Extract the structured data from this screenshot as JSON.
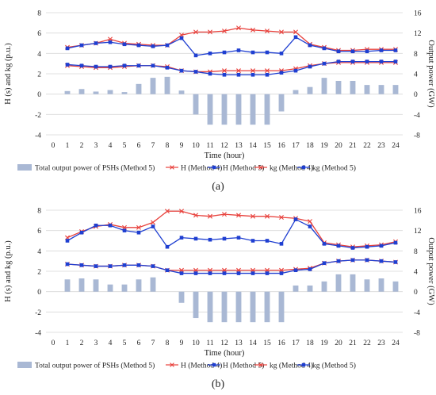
{
  "chart_data": [
    {
      "type": "bar+line",
      "panel_label": "(a)",
      "xlabel": "Time (hour)",
      "ylabel": "H (s) and kg (p.u.)",
      "y2label": "Output power (GW)",
      "categories": [
        0,
        1,
        2,
        3,
        4,
        5,
        6,
        7,
        8,
        9,
        10,
        11,
        12,
        13,
        14,
        15,
        16,
        17,
        18,
        19,
        20,
        21,
        22,
        23,
        24
      ],
      "ylim": [
        -4,
        8
      ],
      "yticks": [
        -4,
        -2,
        0,
        2,
        4,
        6,
        8
      ],
      "y2lim": [
        -8,
        16
      ],
      "y2ticks": [
        -8,
        -4,
        0,
        4,
        8,
        12,
        16
      ],
      "grid": true,
      "legend_position": "bottom",
      "series": [
        {
          "name": "Total output power of PSHs (Method 5)",
          "kind": "bar",
          "axis": "y2",
          "color": "#a9b8d4",
          "x": [
            1,
            2,
            3,
            4,
            5,
            6,
            7,
            8,
            9,
            10,
            11,
            12,
            13,
            14,
            15,
            16,
            17,
            18,
            19,
            20,
            21,
            22,
            23,
            24
          ],
          "values": [
            0.6,
            1.0,
            0.5,
            0.8,
            0.4,
            2.0,
            3.2,
            3.4,
            0.7,
            -4.0,
            -6.0,
            -6.0,
            -6.0,
            -6.0,
            -6.0,
            -3.4,
            0.8,
            1.4,
            3.2,
            2.6,
            2.6,
            1.8,
            1.8,
            1.8
          ]
        },
        {
          "name": "H (Method 4)",
          "kind": "line",
          "marker": "x",
          "axis": "y",
          "color": "#e8413c",
          "x": [
            1,
            2,
            3,
            4,
            5,
            6,
            7,
            8,
            9,
            10,
            11,
            12,
            13,
            14,
            15,
            16,
            17,
            18,
            19,
            20,
            21,
            22,
            23,
            24
          ],
          "values": [
            2.8,
            2.7,
            2.6,
            2.6,
            2.7,
            2.8,
            2.8,
            2.7,
            2.3,
            2.2,
            2.2,
            2.3,
            2.3,
            2.3,
            2.3,
            2.3,
            2.5,
            2.8,
            3.0,
            3.1,
            3.1,
            3.1,
            3.1,
            3.1
          ]
        },
        {
          "name": "H (Method 5)",
          "kind": "line",
          "marker": "square",
          "axis": "y",
          "color": "#1f3fd1",
          "x": [
            1,
            2,
            3,
            4,
            5,
            6,
            7,
            8,
            9,
            10,
            11,
            12,
            13,
            14,
            15,
            16,
            17,
            18,
            19,
            20,
            21,
            22,
            23,
            24
          ],
          "values": [
            2.9,
            2.8,
            2.7,
            2.7,
            2.8,
            2.8,
            2.8,
            2.6,
            2.3,
            2.2,
            2.0,
            1.9,
            1.9,
            1.9,
            1.9,
            2.1,
            2.3,
            2.7,
            3.0,
            3.2,
            3.2,
            3.2,
            3.2,
            3.2
          ]
        },
        {
          "name": "kg (Method 4)",
          "kind": "line",
          "marker": "x",
          "axis": "y",
          "color": "#e8413c",
          "x": [
            1,
            2,
            3,
            4,
            5,
            6,
            7,
            8,
            9,
            10,
            11,
            12,
            13,
            14,
            15,
            16,
            17,
            18,
            19,
            20,
            21,
            22,
            23,
            24
          ],
          "values": [
            4.6,
            4.8,
            5.0,
            5.4,
            5.0,
            4.9,
            4.8,
            4.8,
            5.8,
            6.1,
            6.1,
            6.2,
            6.5,
            6.3,
            6.2,
            6.1,
            6.1,
            4.9,
            4.6,
            4.3,
            4.3,
            4.4,
            4.4,
            4.4
          ]
        },
        {
          "name": "kg (Method 5)",
          "kind": "line",
          "marker": "square",
          "axis": "y",
          "color": "#1f3fd1",
          "x": [
            1,
            2,
            3,
            4,
            5,
            6,
            7,
            8,
            9,
            10,
            11,
            12,
            13,
            14,
            15,
            16,
            17,
            18,
            19,
            20,
            21,
            22,
            23,
            24
          ],
          "values": [
            4.5,
            4.8,
            5.0,
            5.1,
            4.9,
            4.8,
            4.7,
            4.8,
            5.5,
            3.8,
            4.0,
            4.1,
            4.3,
            4.1,
            4.1,
            4.0,
            5.6,
            4.8,
            4.5,
            4.2,
            4.2,
            4.2,
            4.3,
            4.3
          ]
        }
      ]
    },
    {
      "type": "bar+line",
      "panel_label": "(b)",
      "xlabel": "Time (hour)",
      "ylabel": "H (s) and kg (p.u.)",
      "y2label": "Output power (GW)",
      "categories": [
        0,
        1,
        2,
        3,
        4,
        5,
        6,
        7,
        8,
        9,
        10,
        11,
        12,
        13,
        14,
        15,
        16,
        17,
        18,
        19,
        20,
        21,
        22,
        23,
        24
      ],
      "ylim": [
        -4,
        8
      ],
      "yticks": [
        -4,
        -2,
        0,
        2,
        4,
        6,
        8
      ],
      "y2lim": [
        -8,
        16
      ],
      "y2ticks": [
        -8,
        -4,
        0,
        4,
        8,
        12,
        16
      ],
      "grid": true,
      "legend_position": "bottom",
      "series": [
        {
          "name": "Total output power of PSHs (Method 5)",
          "kind": "bar",
          "axis": "y2",
          "color": "#a9b8d4",
          "x": [
            1,
            2,
            3,
            4,
            5,
            6,
            7,
            8,
            9,
            10,
            11,
            12,
            13,
            14,
            15,
            16,
            17,
            18,
            19,
            20,
            21,
            22,
            23,
            24
          ],
          "values": [
            2.4,
            2.6,
            2.4,
            1.4,
            1.4,
            2.4,
            2.8,
            0,
            -2.2,
            -5.2,
            -6.0,
            -6.0,
            -6.0,
            -6.0,
            -6.0,
            -6.0,
            1.2,
            1.2,
            2.0,
            3.4,
            3.4,
            2.4,
            2.6,
            2.0
          ]
        },
        {
          "name": "H (Method 4)",
          "kind": "line",
          "marker": "x",
          "axis": "y",
          "color": "#e8413c",
          "x": [
            1,
            2,
            3,
            4,
            5,
            6,
            7,
            8,
            9,
            10,
            11,
            12,
            13,
            14,
            15,
            16,
            17,
            18,
            19,
            20,
            21,
            22,
            23,
            24
          ],
          "values": [
            2.7,
            2.6,
            2.5,
            2.5,
            2.6,
            2.6,
            2.5,
            2.1,
            2.1,
            2.1,
            2.1,
            2.1,
            2.1,
            2.1,
            2.1,
            2.1,
            2.2,
            2.3,
            2.8,
            3.0,
            3.1,
            3.1,
            3.0,
            2.9
          ]
        },
        {
          "name": "H (Method 5)",
          "kind": "line",
          "marker": "square",
          "axis": "y",
          "color": "#1f3fd1",
          "x": [
            1,
            2,
            3,
            4,
            5,
            6,
            7,
            8,
            9,
            10,
            11,
            12,
            13,
            14,
            15,
            16,
            17,
            18,
            19,
            20,
            21,
            22,
            23,
            24
          ],
          "values": [
            2.7,
            2.6,
            2.5,
            2.5,
            2.6,
            2.6,
            2.5,
            2.1,
            1.8,
            1.8,
            1.8,
            1.8,
            1.8,
            1.8,
            1.8,
            1.8,
            2.1,
            2.2,
            2.8,
            3.0,
            3.1,
            3.1,
            3.0,
            2.9
          ]
        },
        {
          "name": "kg (Method 4)",
          "kind": "line",
          "marker": "x",
          "axis": "y",
          "color": "#e8413c",
          "x": [
            1,
            2,
            3,
            4,
            5,
            6,
            7,
            8,
            9,
            10,
            11,
            12,
            13,
            14,
            15,
            16,
            17,
            18,
            19,
            20,
            21,
            22,
            23,
            24
          ],
          "values": [
            5.3,
            5.9,
            6.4,
            6.6,
            6.3,
            6.3,
            6.8,
            7.9,
            7.9,
            7.5,
            7.4,
            7.6,
            7.5,
            7.4,
            7.4,
            7.3,
            7.2,
            6.9,
            4.8,
            4.6,
            4.4,
            4.5,
            4.6,
            4.9
          ]
        },
        {
          "name": "kg (Method 5)",
          "kind": "line",
          "marker": "square",
          "axis": "y",
          "color": "#1f3fd1",
          "x": [
            1,
            2,
            3,
            4,
            5,
            6,
            7,
            8,
            9,
            10,
            11,
            12,
            13,
            14,
            15,
            16,
            17,
            18,
            19,
            20,
            21,
            22,
            23,
            24
          ],
          "values": [
            5.0,
            5.8,
            6.5,
            6.5,
            6.0,
            5.8,
            6.4,
            4.4,
            5.3,
            5.2,
            5.1,
            5.2,
            5.3,
            5.0,
            5.0,
            4.7,
            7.1,
            6.4,
            4.7,
            4.5,
            4.3,
            4.4,
            4.5,
            4.8
          ]
        }
      ]
    }
  ]
}
